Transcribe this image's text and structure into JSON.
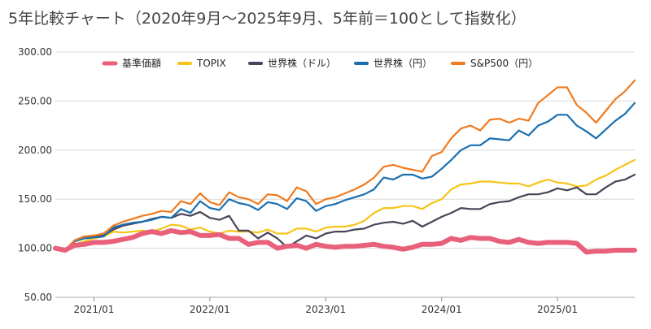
{
  "title": "5年比較チャート（2020年9月～2025年9月、5年前＝100として指数化）",
  "chart_data": {
    "type": "line",
    "title": "5年比較チャート（2020年9月～2025年9月、5年前＝100として指数化）",
    "xlabel": "",
    "ylabel": "",
    "ylim": [
      50,
      300
    ],
    "xlim": [
      "2020-09",
      "2025-09"
    ],
    "y_ticks": [
      "50.00",
      "100.00",
      "150.00",
      "200.00",
      "250.00",
      "300.00"
    ],
    "x_ticks": [
      "2021/01",
      "2022/01",
      "2023/01",
      "2024/01",
      "2025/01"
    ],
    "grid": "horizontal",
    "legend": "top",
    "x": [
      "2020-09",
      "2020-10",
      "2020-11",
      "2020-12",
      "2021-01",
      "2021-02",
      "2021-03",
      "2021-04",
      "2021-05",
      "2021-06",
      "2021-07",
      "2021-08",
      "2021-09",
      "2021-10",
      "2021-11",
      "2021-12",
      "2022-01",
      "2022-02",
      "2022-03",
      "2022-04",
      "2022-05",
      "2022-06",
      "2022-07",
      "2022-08",
      "2022-09",
      "2022-10",
      "2022-11",
      "2022-12",
      "2023-01",
      "2023-02",
      "2023-03",
      "2023-04",
      "2023-05",
      "2023-06",
      "2023-07",
      "2023-08",
      "2023-09",
      "2023-10",
      "2023-11",
      "2023-12",
      "2024-01",
      "2024-02",
      "2024-03",
      "2024-04",
      "2024-05",
      "2024-06",
      "2024-07",
      "2024-08",
      "2024-09",
      "2024-10",
      "2024-11",
      "2024-12",
      "2025-01",
      "2025-02",
      "2025-03",
      "2025-04",
      "2025-05",
      "2025-06",
      "2025-07",
      "2025-08",
      "2025-09"
    ],
    "series": [
      {
        "name": "基準価額",
        "color": "#e8607a",
        "values": [
          100,
          98,
          103,
          104,
          106,
          106,
          107,
          109,
          111,
          115,
          117,
          115,
          118,
          116,
          117,
          113,
          113,
          114,
          110,
          110,
          104,
          106,
          106,
          100,
          102,
          103,
          100,
          104,
          102,
          101,
          102,
          102,
          103,
          104,
          102,
          101,
          99,
          101,
          104,
          104,
          105,
          110,
          108,
          111,
          110,
          110,
          107,
          106,
          109,
          106,
          105,
          106,
          106,
          106,
          105,
          96,
          97,
          97,
          98,
          98,
          98
        ]
      },
      {
        "name": "TOPIX",
        "color": "#f5c518",
        "values": [
          100,
          96,
          104,
          107,
          110,
          112,
          117,
          116,
          117,
          118,
          117,
          120,
          124,
          123,
          119,
          121,
          117,
          115,
          118,
          117,
          117,
          116,
          119,
          115,
          115,
          120,
          120,
          117,
          121,
          122,
          122,
          124,
          128,
          136,
          141,
          141,
          143,
          143,
          140,
          146,
          150,
          160,
          165,
          166,
          168,
          168,
          167,
          166,
          166,
          163,
          167,
          170,
          167,
          166,
          163,
          164,
          170,
          174,
          180,
          185,
          190
        ]
      },
      {
        "name": "世界株（ドル）",
        "color": "#4a4458",
        "values": [
          100,
          98,
          108,
          112,
          112,
          113,
          119,
          123,
          125,
          127,
          130,
          132,
          131,
          135,
          133,
          137,
          131,
          129,
          133,
          118,
          118,
          110,
          116,
          110,
          101,
          107,
          113,
          110,
          115,
          117,
          117,
          119,
          120,
          124,
          126,
          127,
          125,
          128,
          122,
          127,
          132,
          136,
          141,
          140,
          140,
          145,
          147,
          148,
          152,
          155,
          155,
          157,
          161,
          159,
          162,
          155,
          155,
          162,
          168,
          170,
          175
        ]
      },
      {
        "name": "世界株（円）",
        "color": "#1a6fb0",
        "values": [
          100,
          97,
          107,
          110,
          111,
          112,
          121,
          124,
          126,
          127,
          129,
          132,
          131,
          140,
          136,
          148,
          141,
          139,
          150,
          146,
          144,
          139,
          147,
          145,
          140,
          151,
          148,
          138,
          143,
          145,
          149,
          152,
          155,
          160,
          172,
          170,
          175,
          175,
          171,
          173,
          181,
          190,
          200,
          205,
          205,
          212,
          211,
          210,
          220,
          215,
          225,
          229,
          236,
          236,
          225,
          219,
          212,
          221,
          230,
          237,
          248
        ]
      },
      {
        "name": "S&P500（円）",
        "color": "#f07a1e",
        "values": [
          100,
          98,
          108,
          112,
          113,
          115,
          123,
          127,
          130,
          133,
          135,
          138,
          137,
          148,
          145,
          156,
          147,
          144,
          157,
          152,
          150,
          145,
          155,
          154,
          148,
          162,
          158,
          145,
          150,
          152,
          156,
          160,
          165,
          172,
          183,
          185,
          182,
          180,
          178,
          194,
          198,
          212,
          222,
          225,
          220,
          231,
          232,
          228,
          232,
          230,
          248,
          256,
          264,
          264,
          246,
          238,
          228,
          240,
          252,
          260,
          271
        ]
      }
    ]
  }
}
